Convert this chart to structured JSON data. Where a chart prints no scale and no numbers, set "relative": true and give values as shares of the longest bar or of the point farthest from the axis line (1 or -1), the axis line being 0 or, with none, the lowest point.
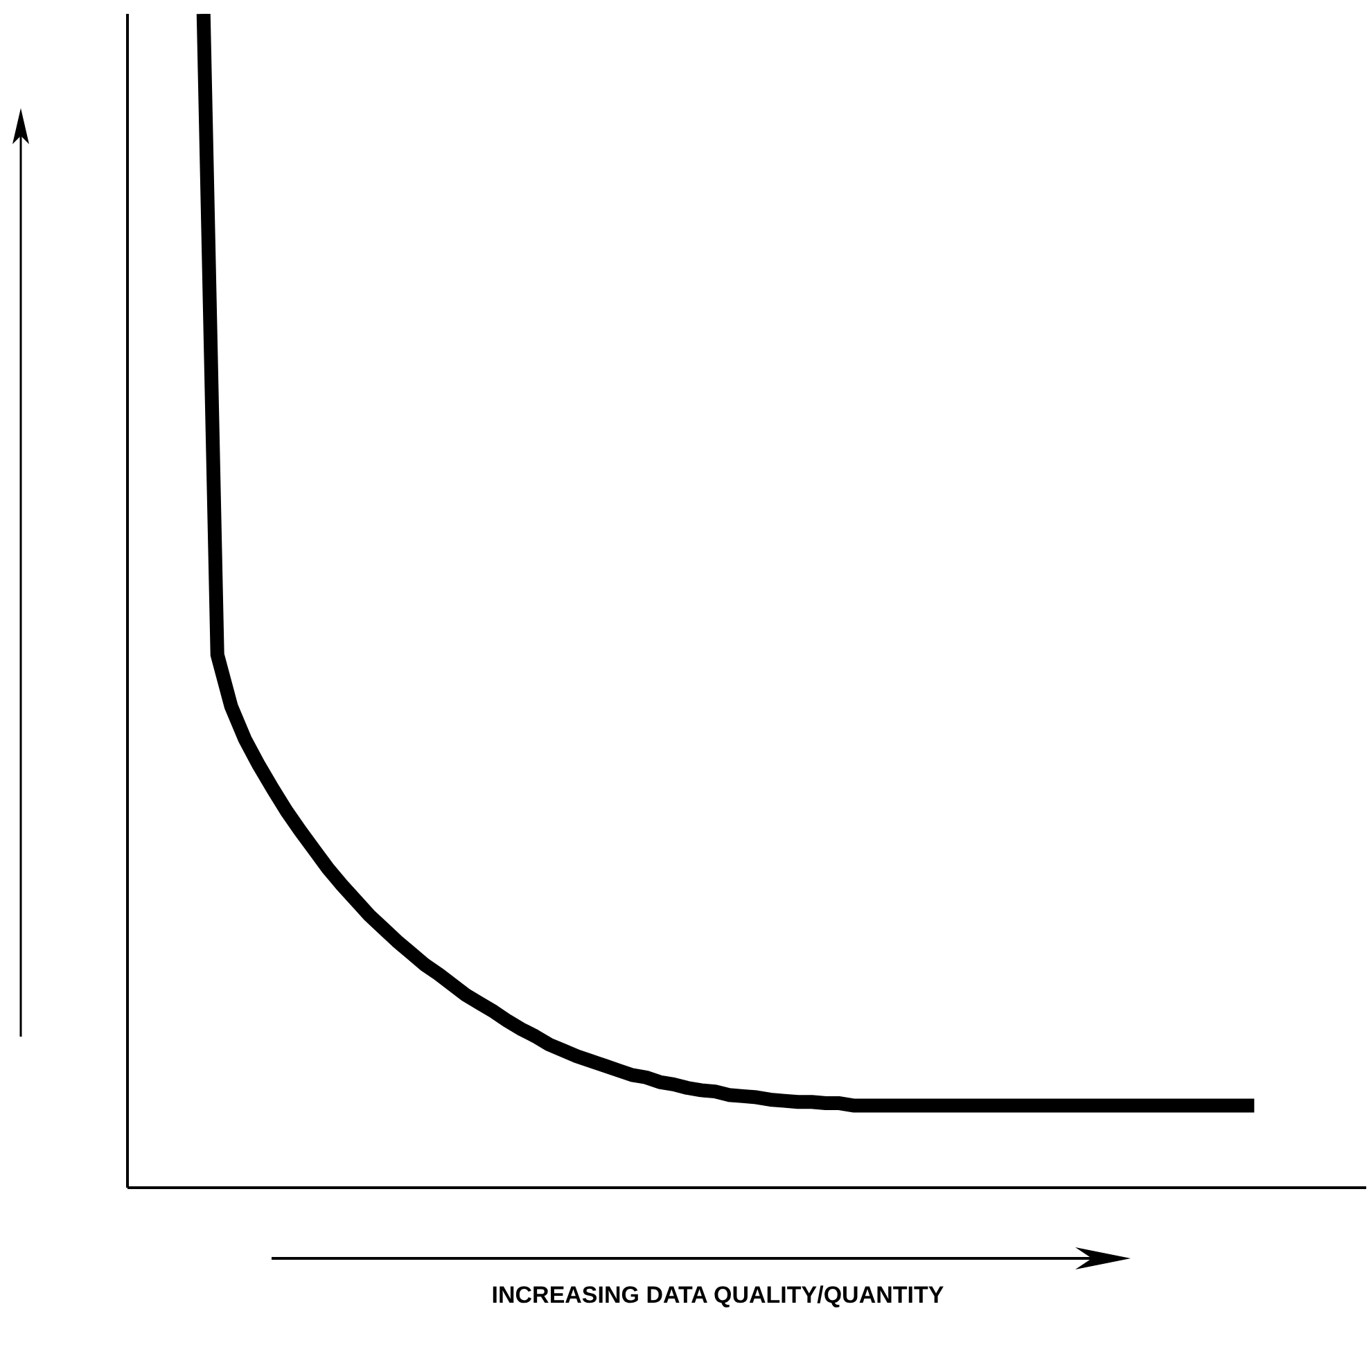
{
  "chart_data": {
    "type": "line",
    "xlabel": "INCREASING DATA QUALITY/QUANTITY",
    "relative": true,
    "grid": false,
    "legend": false,
    "marker": "none",
    "line_style": "solid",
    "categories": [
      null,
      null,
      null,
      null,
      null,
      null,
      null,
      null,
      null,
      null,
      null,
      null,
      null,
      null,
      null,
      null,
      null,
      null,
      null,
      null,
      null,
      null,
      null,
      null,
      null,
      null,
      null,
      null,
      null,
      null,
      null,
      null,
      null,
      null,
      null,
      null,
      null,
      null,
      null,
      null,
      null,
      null,
      null,
      null,
      null,
      null,
      null,
      null,
      null,
      null,
      null,
      null,
      null,
      null,
      null,
      null,
      null,
      null,
      null,
      null,
      null,
      null,
      null,
      null,
      null,
      null,
      null,
      null,
      null,
      null,
      null,
      null,
      null,
      null,
      null,
      null,
      null
    ],
    "series": [
      {
        "color": "#000000",
        "values": [
          1,
          0.454,
          0.41,
          0.382,
          0.36,
          0.34,
          0.321,
          0.304,
          0.288,
          0.272,
          0.258,
          0.245,
          0.232,
          0.221,
          0.21,
          0.2,
          0.19,
          0.182,
          0.173,
          0.164,
          0.157,
          0.15,
          0.142,
          0.135,
          0.129,
          0.122,
          0.117,
          0.112,
          0.108,
          0.104,
          0.1,
          0.096,
          0.094,
          0.09,
          0.088,
          0.085,
          0.083,
          0.082,
          0.079,
          0.078,
          0.077,
          0.075,
          0.074,
          0.073,
          0.073,
          0.072,
          0.072,
          0.07,
          0.07,
          0.07,
          0.07,
          0.07,
          0.07,
          0.07,
          0.07,
          0.07,
          0.07,
          0.07,
          0.07,
          0.07,
          0.07,
          0.07,
          0.07,
          0.07,
          0.07,
          0.07,
          0.07,
          0.07,
          0.07,
          0.07,
          0.07,
          0.07,
          0.07,
          0.07,
          0.07,
          0.07,
          0.07
        ]
      }
    ]
  }
}
